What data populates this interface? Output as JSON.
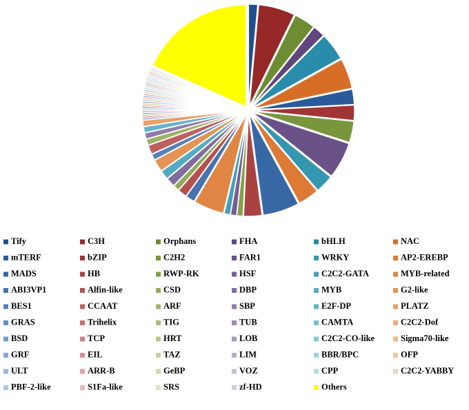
{
  "chart_data": {
    "type": "pie",
    "categories": [
      "Tify",
      "C3H",
      "Orphans",
      "FHA",
      "bHLH",
      "NAC",
      "mTERF",
      "bZIP",
      "C2H2",
      "FAR1",
      "WRKY",
      "AP2-EREBP",
      "MADS",
      "HB",
      "RWP-RK",
      "HSF",
      "C2C2-GATA",
      "MYB-related",
      "ABI3VP1",
      "Alfin-like",
      "CSD",
      "DBP",
      "MYB",
      "G2-like",
      "BES1",
      "CCAAT",
      "ARF",
      "SBP",
      "E2F-DP",
      "PLATZ",
      "GRAS",
      "Trihelix",
      "TIG",
      "TUB",
      "CAMTA",
      "C2C2-Dof",
      "BSD",
      "TCP",
      "HRT",
      "LOB",
      "C2C2-CO-like",
      "Sigma70-like",
      "GRF",
      "EIL",
      "TAZ",
      "LIM",
      "BBR/BPC",
      "OFP",
      "ULT",
      "ARR-B",
      "GeBP",
      "VOZ",
      "CPP",
      "C2C2-YABBY",
      "PBF-2-like",
      "S1Fa-like",
      "SRS",
      "zf-HD",
      "Others"
    ],
    "values": [
      1.5,
      6,
      3.5,
      2,
      4.5,
      5,
      2.5,
      2.5,
      3.5,
      6,
      3,
      3.5,
      6,
      3,
      1,
      1,
      1,
      5,
      1.5,
      1.5,
      1,
      1.5,
      1.5,
      2,
      1,
      1.5,
      1,
      1,
      1,
      1,
      0.3,
      0.3,
      0.3,
      0.3,
      0.3,
      0.3,
      0.3,
      0.3,
      0.3,
      0.3,
      0.3,
      0.3,
      0.3,
      0.3,
      0.3,
      0.3,
      0.3,
      0.3,
      0.3,
      0.3,
      0.3,
      0.3,
      0.3,
      0.3,
      0.3,
      0.3,
      0.3,
      0.3,
      19
    ],
    "colors": [
      "#1f4e91",
      "#962828",
      "#6e8c32",
      "#5f467d",
      "#288caa",
      "#d76e28",
      "#2b5a9c",
      "#a13434",
      "#79963d",
      "#6a5288",
      "#3596b2",
      "#dc7a36",
      "#3867a6",
      "#ab4242",
      "#85a04a",
      "#765f93",
      "#44a0ba",
      "#e08645",
      "#4674b0",
      "#b55050",
      "#91aa58",
      "#836d9e",
      "#54aac2",
      "#e49356",
      "#5581ba",
      "#be5f5f",
      "#9db467",
      "#907ca9",
      "#65b4ca",
      "#e8a067",
      "#648ec3",
      "#c76f6f",
      "#a9be77",
      "#9d8bb4",
      "#76bed2",
      "#ebad79",
      "#749bcc",
      "#d08080",
      "#b5c888",
      "#ab9bbf",
      "#88c8da",
      "#eeba8c",
      "#85a9d5",
      "#d89191",
      "#c1d29a",
      "#b9abca",
      "#9bd1e1",
      "#f1c7a0",
      "#96b7dd",
      "#e0a3a3",
      "#cddcac",
      "#c7bcd6",
      "#aedae8",
      "#f4d4b4",
      "#a8c5e5",
      "#e8b6b6",
      "#d9e6bf",
      "#d5cde1",
      "#ffff00"
    ],
    "legend": "bottom"
  }
}
